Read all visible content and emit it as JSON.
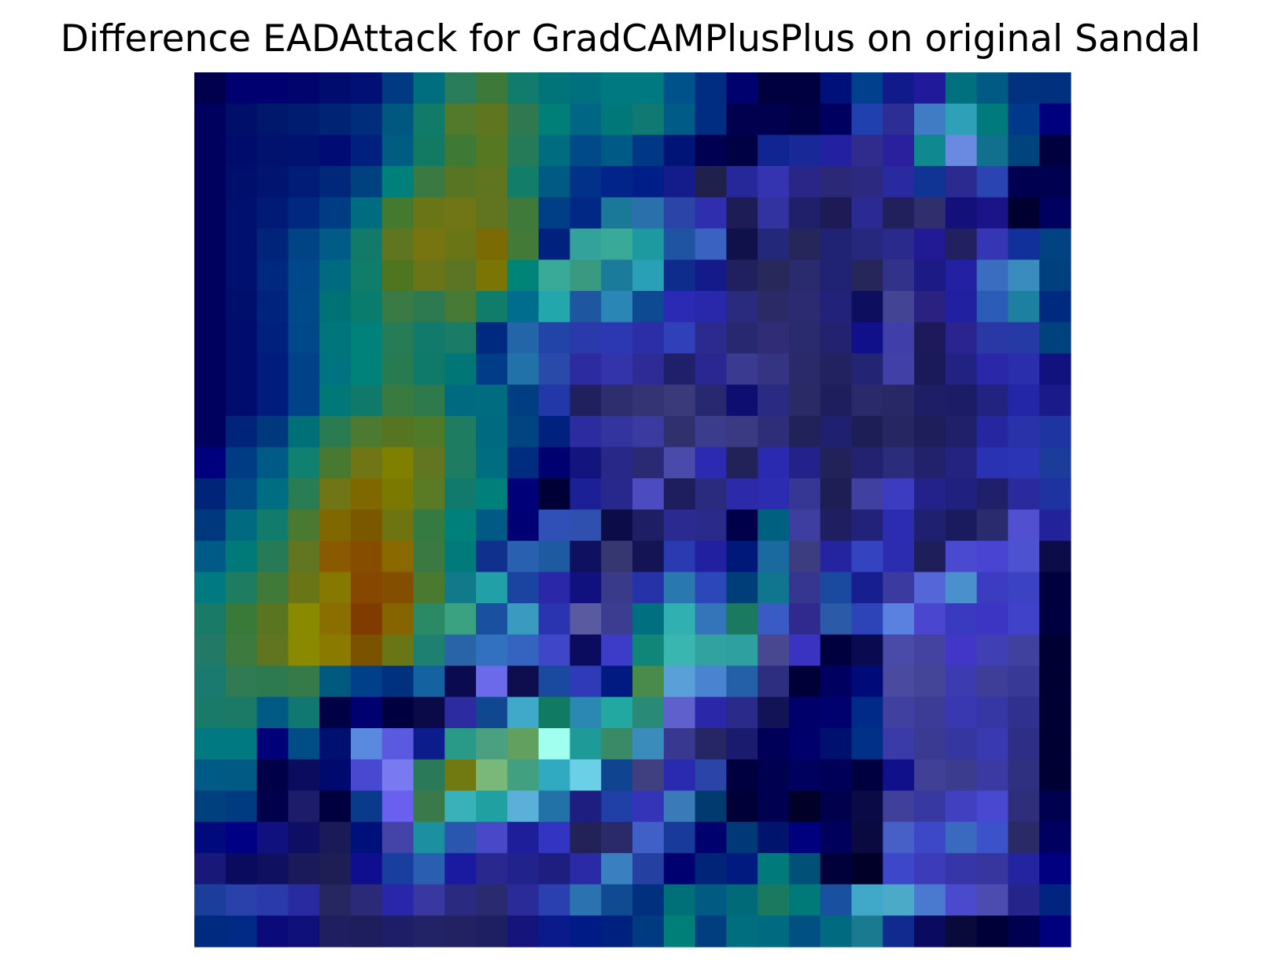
{
  "chart_data": {
    "type": "heatmap",
    "title": "Difference EADAttack for GradCAMPlusPlus on original Sandal",
    "xlabel": "",
    "ylabel": "",
    "axes_visible": false,
    "colorbar": false,
    "rows": 28,
    "cols": 28,
    "colors": [
      [
        "#00004d",
        "#000070",
        "#000070",
        "#00046c",
        "#000c6e",
        "#001074",
        "#003a80",
        "#006e7e",
        "#2a7d5a",
        "#3d7a3a",
        "#127c6c",
        "#007479",
        "#00707e",
        "#007a80",
        "#007a80",
        "#00528a",
        "#002c82",
        "#00006e",
        "#000040",
        "#000040",
        "#00107a",
        "#00408c",
        "#101a8a",
        "#201a9a",
        "#00707e",
        "#005a84",
        "#003280",
        "#00307e"
      ],
      [
        "#00005e",
        "#00106a",
        "#00186c",
        "#001c70",
        "#002474",
        "#002c7c",
        "#005880",
        "#127a68",
        "#537a2a",
        "#5f7520",
        "#307850",
        "#007e78",
        "#006686",
        "#00787a",
        "#107a72",
        "#005c86",
        "#002c82",
        "#00004e",
        "#00004e",
        "#000044",
        "#000060",
        "#2040b0",
        "#2c2e96",
        "#3f7cc4",
        "#2ea0b8",
        "#007a7c",
        "#00388a",
        "#00007e"
      ],
      [
        "#00005e",
        "#000c6c",
        "#00126e",
        "#001270",
        "#000c74",
        "#00207e",
        "#005c80",
        "#127a62",
        "#3f7a34",
        "#567820",
        "#257a58",
        "#006c80",
        "#004a8a",
        "#005a86",
        "#003886",
        "#001478",
        "#000052",
        "#000045",
        "#102492",
        "#182896",
        "#2420a2",
        "#302c8e",
        "#2a209e",
        "#108890",
        "#6a8ae2",
        "#10708e",
        "#00447e",
        "#00003e"
      ],
      [
        "#00005e",
        "#000e6c",
        "#001470",
        "#001c76",
        "#00287a",
        "#004280",
        "#00807a",
        "#3a7a42",
        "#577522",
        "#5f7520",
        "#127e6a",
        "#005a84",
        "#00328a",
        "#00248a",
        "#001e88",
        "#141c8c",
        "#20204c",
        "#26289a",
        "#3434b0",
        "#2a2688",
        "#2c2878",
        "#2c2a80",
        "#2a2aa0",
        "#103494",
        "#2a2a90",
        "#2a44b2",
        "#000050",
        "#000050"
      ],
      [
        "#00005e",
        "#00106e",
        "#001a76",
        "#002880",
        "#003c84",
        "#006c80",
        "#437a30",
        "#6a7515",
        "#707515",
        "#617520",
        "#3f7a3a",
        "#003e86",
        "#002884",
        "#1a7898",
        "#2a70aa",
        "#2a44a8",
        "#2e2eae",
        "#1e1c56",
        "#3232a0",
        "#20206a",
        "#1e1a56",
        "#2a2a92",
        "#22205c",
        "#302e6c",
        "#14107a",
        "#1a1488",
        "#000030",
        "#000060"
      ],
      [
        "#00005e",
        "#00106e",
        "#00247a",
        "#004486",
        "#005c86",
        "#127a68",
        "#607520",
        "#767510",
        "#6a7515",
        "#7a6b05",
        "#437a38",
        "#00227e",
        "#32a29a",
        "#3aaa98",
        "#1c9aa0",
        "#1e54a2",
        "#3a62c0",
        "#10104a",
        "#24287a",
        "#26265a",
        "#202274",
        "#26287e",
        "#2a2a8c",
        "#221a94",
        "#222060",
        "#3636b4",
        "#12309a",
        "#004282"
      ],
      [
        "#00005e",
        "#00106e",
        "#00287e",
        "#00488a",
        "#006a80",
        "#107c6a",
        "#507520",
        "#6a7518",
        "#5b7524",
        "#7a7505",
        "#008478",
        "#3aaa98",
        "#3a9a80",
        "#1a7c9a",
        "#2aa0b6",
        "#0e2c8c",
        "#141a8a",
        "#20205e",
        "#28285a",
        "#2a2a6e",
        "#202274",
        "#26265a",
        "#32328a",
        "#1c1a84",
        "#2420a4",
        "#3a6cc0",
        "#3a8cbe",
        "#00407e"
      ],
      [
        "#00005e",
        "#000e6c",
        "#00247e",
        "#004a8a",
        "#007276",
        "#0a7c6e",
        "#3a7a44",
        "#2e7a50",
        "#477a34",
        "#107c6a",
        "#006c8e",
        "#22a8aa",
        "#1e56a0",
        "#2a86b4",
        "#0e4a92",
        "#2a2ab4",
        "#2a28aa",
        "#2a2a7e",
        "#2c2a66",
        "#2c2a70",
        "#22227a",
        "#0e0e5e",
        "#444494",
        "#2a2280",
        "#2020a0",
        "#2a5cb8",
        "#1e80a0",
        "#002a80"
      ],
      [
        "#00005e",
        "#000c6e",
        "#00207e",
        "#00488a",
        "#00767c",
        "#00827a",
        "#267c56",
        "#127a6a",
        "#1a7c66",
        "#002a80",
        "#2266a8",
        "#2244a8",
        "#2a3aaa",
        "#2c38b2",
        "#2c2ea8",
        "#3040b8",
        "#2c2a8e",
        "#282870",
        "#302c76",
        "#2a2a6e",
        "#222270",
        "#10108a",
        "#403ea8",
        "#1c1a5a",
        "#2a248e",
        "#2a38a6",
        "#263aa6",
        "#00427e"
      ],
      [
        "#00005e",
        "#000c6e",
        "#001c7c",
        "#004288",
        "#007280",
        "#00827a",
        "#287a50",
        "#107a6a",
        "#007676",
        "#003c88",
        "#2272aa",
        "#2a4aaa",
        "#2c2ca0",
        "#3434aa",
        "#2e2a96",
        "#20206a",
        "#2a2890",
        "#3a3a90",
        "#343482",
        "#2a2a6a",
        "#222260",
        "#242474",
        "#4040a6",
        "#1a1a5a",
        "#222282",
        "#2a28a8",
        "#2a2eac",
        "#12127e"
      ],
      [
        "#00005e",
        "#000c6e",
        "#001c7c",
        "#004288",
        "#007878",
        "#107a6a",
        "#387a40",
        "#2e7a4c",
        "#006a80",
        "#006c80",
        "#003e82",
        "#2238a8",
        "#20205e",
        "#2e2e6e",
        "#343474",
        "#3a3a7a",
        "#282870",
        "#0e0e70",
        "#2a2a82",
        "#2a2a66",
        "#1e1e5c",
        "#2a2a6a",
        "#282866",
        "#1e1e66",
        "#1c1c66",
        "#222280",
        "#2426a8",
        "#1a1a8a"
      ],
      [
        "#00005e",
        "#00247a",
        "#00387e",
        "#007078",
        "#2a7a52",
        "#4c7a30",
        "#567520",
        "#4f7a28",
        "#1e7c60",
        "#006a80",
        "#004482",
        "#00227e",
        "#2c2ca0",
        "#34349e",
        "#3a3aa0",
        "#30306e",
        "#3c3c8c",
        "#3a3a82",
        "#2e2e78",
        "#22225a",
        "#202070",
        "#1e1e56",
        "#262662",
        "#1e1e5a",
        "#20206a",
        "#2626a0",
        "#2a32aa",
        "#1e34a0"
      ],
      [
        "#00007e",
        "#003c84",
        "#005a86",
        "#108070",
        "#477a30",
        "#707515",
        "#808000",
        "#627520",
        "#1e7c60",
        "#006e80",
        "#002c80",
        "#000070",
        "#14147e",
        "#282888",
        "#2a2a74",
        "#4a4aaa",
        "#2c2ab0",
        "#222258",
        "#2a2ab0",
        "#22228a",
        "#222258",
        "#222270",
        "#2c2c7c",
        "#22226c",
        "#242480",
        "#2a32b4",
        "#2a34b4",
        "#1c3c9c"
      ],
      [
        "#002478",
        "#004a86",
        "#006e82",
        "#2a7c54",
        "#707515",
        "#806800",
        "#7a7a00",
        "#5a7a26",
        "#127a6c",
        "#00807a",
        "#000078",
        "#000036",
        "#1c2096",
        "#28288c",
        "#4c4cc0",
        "#1e1e5e",
        "#2a2a7e",
        "#2c2aa8",
        "#2c2cb0",
        "#363694",
        "#1e1e54",
        "#4040a0",
        "#3c3cc0",
        "#22228a",
        "#202080",
        "#20206a",
        "#2a2a9c",
        "#1e32a0"
      ],
      [
        "#00387e",
        "#006a80",
        "#127c6c",
        "#4a7a32",
        "#806800",
        "#7a5800",
        "#6e7510",
        "#357a40",
        "#00807a",
        "#005a84",
        "#000074",
        "#3050b8",
        "#3050b0",
        "#0c0c48",
        "#1e1e64",
        "#2a2a90",
        "#2a2a8a",
        "#00004a",
        "#006080",
        "#3e3ea0",
        "#1e1e60",
        "#22227a",
        "#2c2cb0",
        "#202070",
        "#1a1a5e",
        "#2a2a6e",
        "#5050d0",
        "#22229a"
      ],
      [
        "#005a86",
        "#007a78",
        "#267a56",
        "#627520",
        "#8a5a00",
        "#864c00",
        "#8a6a00",
        "#3a7a42",
        "#007a7a",
        "#10308e",
        "#2a60b0",
        "#1e5aa0",
        "#101060",
        "#363670",
        "#141454",
        "#2a3ab0",
        "#2020a0",
        "#001878",
        "#1a6aa0",
        "#3c3c80",
        "#2424a0",
        "#3444c0",
        "#2c2cb0",
        "#1e1e5a",
        "#4a4ad0",
        "#4a44d2",
        "#4c52d0",
        "#0c0c48"
      ],
      [
        "#007a80",
        "#1e7c60",
        "#3f7a38",
        "#6a7515",
        "#867800",
        "#864800",
        "#844e00",
        "#4a7a30",
        "#107a8a",
        "#22a0a8",
        "#1a44a0",
        "#2a28a8",
        "#10107e",
        "#3a3a8a",
        "#2632a8",
        "#2a78b0",
        "#2c48b8",
        "#003e7a",
        "#107690",
        "#363690",
        "#1a4aa0",
        "#161e90",
        "#3a3aa0",
        "#5566d8",
        "#4a90cc",
        "#3c3cc0",
        "#3c42c4",
        "#00003e"
      ],
      [
        "#1a7a68",
        "#3a7a38",
        "#5a7520",
        "#8a8a00",
        "#8a6e00",
        "#803c00",
        "#866400",
        "#2a8a66",
        "#3aa280",
        "#1a50a0",
        "#3a9ac0",
        "#2a34b0",
        "#5a5aa0",
        "#3c3c90",
        "#007080",
        "#30b0b0",
        "#3474b8",
        "#1a7a60",
        "#3a5ac4",
        "#302a8e",
        "#2a5aa8",
        "#2c44b8",
        "#5a80e0",
        "#4a46d0",
        "#3a3ac0",
        "#3c34c2",
        "#4042ca",
        "#000040"
      ],
      [
        "#227a66",
        "#3c7a3e",
        "#607520",
        "#8a8a00",
        "#8a7a00",
        "#7a5200",
        "#6a7515",
        "#1e8070",
        "#2a64a8",
        "#3270c0",
        "#3264c0",
        "#4046c8",
        "#0c0c5e",
        "#3c3cc8",
        "#108678",
        "#3ab6b0",
        "#32a2a0",
        "#2ea0a0",
        "#484890",
        "#3a32c0",
        "#00003e",
        "#0a0a50",
        "#4a4aa8",
        "#4444a0",
        "#4236c8",
        "#4040b4",
        "#40409e",
        "#000034"
      ],
      [
        "#1a7a70",
        "#307a54",
        "#2e7a50",
        "#357a48",
        "#005a80",
        "#00408a",
        "#003080",
        "#1462a0",
        "#0a0a50",
        "#6a6aea",
        "#0e0e4e",
        "#1a4aa0",
        "#2e3ab8",
        "#001a82",
        "#4a8a4a",
        "#5aa0d8",
        "#4a84d0",
        "#2460a8",
        "#2e2e80",
        "#000038",
        "#000060",
        "#000a78",
        "#4a4aa0",
        "#444498",
        "#3c3cb0",
        "#3e3e98",
        "#383896",
        "#000034"
      ],
      [
        "#1a7a6a",
        "#1a7a66",
        "#005a84",
        "#107870",
        "#000044",
        "#000070",
        "#000040",
        "#0a0a48",
        "#2c2ca0",
        "#104890",
        "#40a8c8",
        "#107a62",
        "#2a88b2",
        "#22a8a0",
        "#2a8a78",
        "#6060cc",
        "#2a28a8",
        "#2a2a8a",
        "#121256",
        "#00006a",
        "#00006e",
        "#002a88",
        "#4040a0",
        "#3c3c96",
        "#3a38b0",
        "#3636a4",
        "#30308e",
        "#000034"
      ],
      [
        "#007a80",
        "#007a80",
        "#000078",
        "#004c86",
        "#001070",
        "#5a8ae0",
        "#5a5ae0",
        "#0c1c8a",
        "#2a9a88",
        "#4aa080",
        "#62a060",
        "#a0ffee",
        "#1e9a98",
        "#3a8a68",
        "#3a8cba",
        "#383890",
        "#262664",
        "#1a1a6e",
        "#000058",
        "#00006c",
        "#00106e",
        "#003088",
        "#3a3aa8",
        "#3a3a92",
        "#3636a0",
        "#3a3ab0",
        "#2e2e86",
        "#000034"
      ],
      [
        "#005a86",
        "#005a84",
        "#000048",
        "#0c0c5e",
        "#000a6e",
        "#4848d0",
        "#7a7af0",
        "#2a7a5a",
        "#707a10",
        "#7ab87a",
        "#40a080",
        "#30aac0",
        "#6ad0e8",
        "#0e4490",
        "#404080",
        "#2a2ab0",
        "#2a44a8",
        "#000040",
        "#000050",
        "#00005e",
        "#000058",
        "#000040",
        "#10108a",
        "#404096",
        "#3c3c8e",
        "#3a3aa2",
        "#303080",
        "#000034"
      ],
      [
        "#00407e",
        "#003a80",
        "#00004c",
        "#1c1c6a",
        "#00003e",
        "#0a3a8c",
        "#6a60f0",
        "#3a7a4a",
        "#38b2b8",
        "#20a0a0",
        "#5ab0d8",
        "#2272a8",
        "#1e1e80",
        "#2040a8",
        "#3434b8",
        "#3a7ab8",
        "#003a6e",
        "#000038",
        "#000050",
        "#000028",
        "#00004c",
        "#0a0a46",
        "#40409a",
        "#3838a2",
        "#4040c0",
        "#4848d0",
        "#2e2e7a",
        "#000050"
      ],
      [
        "#000a7c",
        "#000084",
        "#10107e",
        "#0e0e64",
        "#1a1a58",
        "#00107a",
        "#4444a8",
        "#1a90a0",
        "#2a56b0",
        "#4848c8",
        "#1e1e9a",
        "#3434c2",
        "#222258",
        "#2a2a6a",
        "#4060c8",
        "#183a9a",
        "#00006e",
        "#003878",
        "#00146e",
        "#00007e",
        "#00005c",
        "#0a0a40",
        "#4660c8",
        "#3c48c8",
        "#3a6ac0",
        "#3c52c8",
        "#2a2a66",
        "#000060"
      ],
      [
        "#181878",
        "#0a0a5e",
        "#101060",
        "#1a1a5a",
        "#1e1e54",
        "#0e0e8e",
        "#183ea0",
        "#2a5eb0",
        "#1a1aa0",
        "#28288e",
        "#22228c",
        "#1e1e80",
        "#2a2aa6",
        "#3a80c0",
        "#2440a0",
        "#000070",
        "#002478",
        "#001a80",
        "#007a7a",
        "#005078",
        "#00003a",
        "#000028",
        "#3c48c8",
        "#3c3cba",
        "#3636a8",
        "#36369e",
        "#2424a0",
        "#000080"
      ],
      [
        "#1a3e9a",
        "#2a40aa",
        "#2a3aaa",
        "#2a2aa0",
        "#262660",
        "#2a2a78",
        "#2a26aa",
        "#3838a0",
        "#2a2a80",
        "#2a2a70",
        "#2a2a98",
        "#2a40b0",
        "#2a72b0",
        "#104a90",
        "#00307e",
        "#007078",
        "#005a82",
        "#006a78",
        "#1a7a60",
        "#007a78",
        "#1a50a0",
        "#40a8c8",
        "#4aaac8",
        "#4a7ad0",
        "#4a4acc",
        "#4c4cb0",
        "#24248a",
        "#002480"
      ],
      [
        "#002a80",
        "#002a86",
        "#0a0a7a",
        "#10107a",
        "#1e1e60",
        "#1e1e5c",
        "#1e1e68",
        "#222266",
        "#222262",
        "#1e1e62",
        "#14147a",
        "#0a1a8a",
        "#001a86",
        "#002080",
        "#003a80",
        "#007e78",
        "#003e80",
        "#006e7e",
        "#006a80",
        "#005082",
        "#006a80",
        "#1a7a90",
        "#102a90",
        "#0a0a60",
        "#0a0a3a",
        "#000038",
        "#000050",
        "#00007e"
      ]
    ]
  }
}
